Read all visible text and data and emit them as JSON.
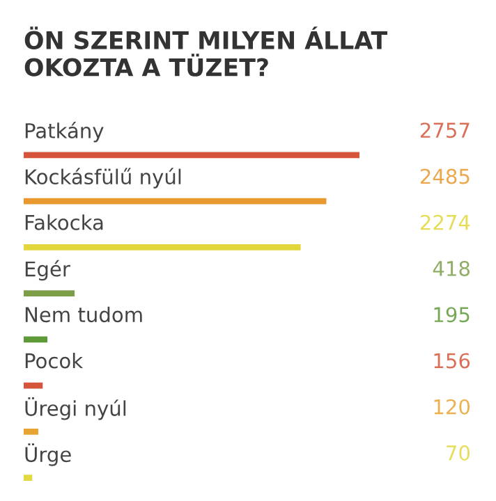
{
  "chart_data": {
    "type": "bar",
    "orientation": "horizontal",
    "title": "ÖN SZERINT MILYEN ÁLLAT OKOZTA A TÜZET?",
    "categories": [
      "Patkány",
      "Kockásfülű nyúl",
      "Fakocka",
      "Egér",
      "Nem tudom",
      "Pocok",
      "Üregi nyúl",
      "Ürge"
    ],
    "values": [
      2757,
      2485,
      2274,
      418,
      195,
      156,
      120,
      70
    ],
    "colors": [
      "#d4553a",
      "#e8982e",
      "#e2d63a",
      "#7c9e48",
      "#5e9a38",
      "#d4553a",
      "#e8a432",
      "#e2d840"
    ],
    "data_labels": true
  }
}
